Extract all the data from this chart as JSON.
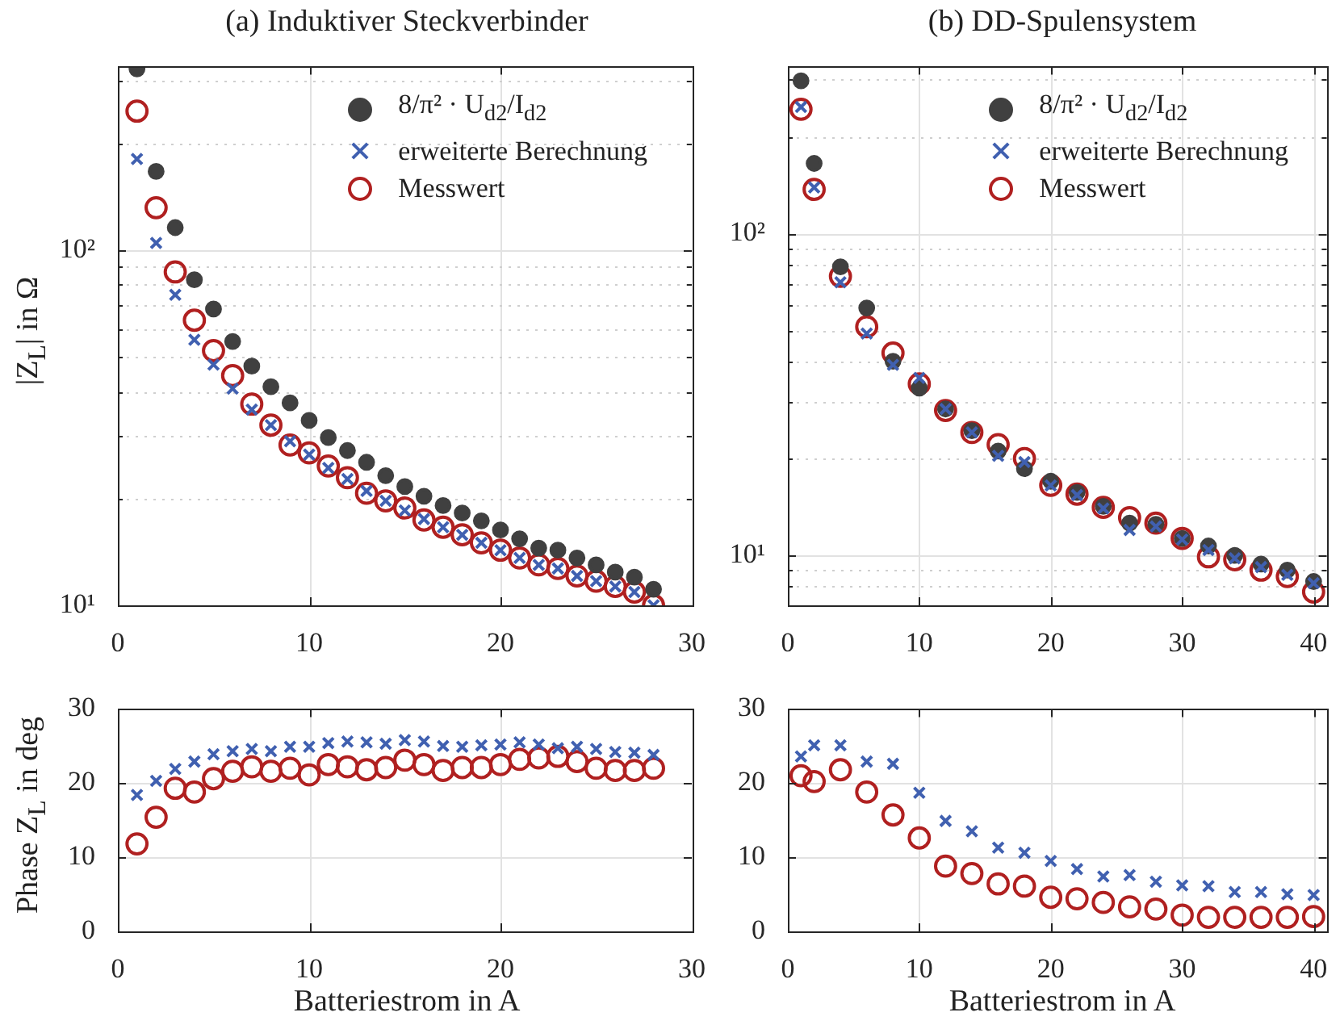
{
  "chart_data": [
    {
      "type": "scatter",
      "title": "(a) Induktiver Steckverbinder",
      "ylabel": "|Z$_{L}$| in Ω",
      "log": "y",
      "grid": true,
      "legend": "top right",
      "xlim": [
        0,
        30
      ],
      "xticks": [
        0,
        10,
        20,
        30
      ],
      "ylim": [
        10,
        330
      ],
      "yticks": [
        {
          "value": 10,
          "label": "10¹"
        },
        {
          "value": 20,
          "label": null
        },
        {
          "value": 30,
          "label": null
        },
        {
          "value": 40,
          "label": null
        },
        {
          "value": 50,
          "label": null
        },
        {
          "value": 60,
          "label": null
        },
        {
          "value": 70,
          "label": null
        },
        {
          "value": 80,
          "label": null
        },
        {
          "value": 90,
          "label": null
        },
        {
          "value": 100,
          "label": "10²"
        },
        {
          "value": 200,
          "label": null
        },
        {
          "value": 300,
          "label": null
        }
      ],
      "x": [
        1,
        2,
        3,
        4,
        5,
        6,
        7,
        8,
        9,
        10,
        11,
        12,
        13,
        14,
        15,
        16,
        17,
        18,
        19,
        20,
        21,
        22,
        23,
        24,
        25,
        26,
        27,
        28
      ],
      "series": [
        {
          "name": "8/π² · U$_{d2}$/I$_{d2}$",
          "color": "#404040",
          "marker": "circle",
          "values": [
            325,
            167,
            116,
            82.7,
            68.4,
            55.4,
            47.2,
            41.3,
            37.2,
            33.2,
            29.7,
            27.3,
            25.3,
            23.2,
            21.6,
            20.3,
            19.1,
            18.2,
            17.3,
            16.3,
            15.4,
            14.5,
            14.3,
            13.6,
            13.0,
            12.4,
            12.0,
            11.1
          ]
        },
        {
          "name": "erweiterte Berechnung",
          "color": "#4060b0",
          "marker": "cross",
          "values": [
            181,
            105,
            75,
            56,
            47.7,
            40.8,
            35.6,
            32.2,
            29.0,
            26.6,
            24.4,
            22.7,
            21.0,
            19.7,
            18.5,
            17.5,
            16.6,
            15.8,
            15.0,
            14.3,
            13.6,
            13.0,
            12.7,
            12.1,
            11.7,
            11.3,
            10.9,
            10.0
          ]
        },
        {
          "name": "Messwert",
          "color": "#b02020",
          "marker": "circle",
          "values": [
            247,
            132,
            87,
            63.6,
            52.2,
            44.4,
            36.9,
            32.2,
            28.3,
            26.9,
            24.7,
            22.9,
            20.7,
            19.7,
            18.8,
            17.4,
            16.6,
            15.8,
            15.0,
            14.3,
            13.6,
            13.0,
            12.7,
            12.1,
            11.7,
            11.3,
            10.9,
            10.0
          ]
        }
      ]
    },
    {
      "type": "scatter",
      "title": "(b) DD-Spulensystem",
      "log": "y",
      "grid": true,
      "legend": "top right",
      "xlim": [
        0,
        41
      ],
      "xticks": [
        0,
        10,
        20,
        30,
        40
      ],
      "ylim": [
        7,
        330
      ],
      "yticks": [
        {
          "value": 8,
          "label": null
        },
        {
          "value": 9,
          "label": null
        },
        {
          "value": 10,
          "label": "10¹"
        },
        {
          "value": 20,
          "label": null
        },
        {
          "value": 30,
          "label": null
        },
        {
          "value": 40,
          "label": null
        },
        {
          "value": 50,
          "label": null
        },
        {
          "value": 60,
          "label": null
        },
        {
          "value": 70,
          "label": null
        },
        {
          "value": 80,
          "label": null
        },
        {
          "value": 90,
          "label": null
        },
        {
          "value": 100,
          "label": "10²"
        },
        {
          "value": 200,
          "label": null
        },
        {
          "value": 300,
          "label": null
        }
      ],
      "x": [
        1,
        2,
        4,
        6,
        8,
        10,
        12,
        14,
        16,
        18,
        20,
        22,
        24,
        26,
        28,
        30,
        32,
        34,
        36,
        38,
        40
      ],
      "series": [
        {
          "name": "8/π² · U$_{d2}$/I$_{d2}$",
          "color": "#404040",
          "marker": "circle",
          "values": [
            298,
            165,
            78.8,
            58.7,
            40.1,
            33.1,
            28.5,
            24.4,
            21.1,
            18.6,
            17.0,
            15.7,
            14.2,
            12.6,
            12.5,
            11.3,
            10.7,
            10.0,
            9.4,
            9.0,
            8.3
          ]
        },
        {
          "name": "erweiterte Berechnung",
          "color": "#4060b0",
          "marker": "cross",
          "values": [
            247,
            139,
            70.5,
            48.9,
            39.1,
            35.6,
            28.5,
            24.1,
            20.4,
            19.5,
            16.5,
            15.4,
            14.0,
            12.0,
            12.3,
            11.2,
            10.4,
            9.8,
            9.2,
            8.7,
            8.2
          ]
        },
        {
          "name": "Messwert",
          "color": "#b02020",
          "marker": "circle",
          "values": [
            243,
            137,
            73.6,
            51.3,
            42.5,
            34.1,
            28.2,
            24.1,
            22.1,
            20.0,
            16.5,
            15.5,
            14.1,
            13.1,
            12.6,
            11.3,
            9.9,
            9.7,
            9.0,
            8.6,
            7.7
          ]
        }
      ]
    },
    {
      "type": "scatter",
      "xlabel": "Batteriestrom in A",
      "ylabel": "Phase Z$_{L}$ in deg",
      "grid": true,
      "xlim": [
        0,
        30
      ],
      "xticks": [
        0,
        10,
        20,
        30
      ],
      "ylim": [
        0,
        30
      ],
      "yticks": [
        0,
        10,
        20,
        30
      ],
      "x": [
        1,
        2,
        3,
        4,
        5,
        6,
        7,
        8,
        9,
        10,
        11,
        12,
        13,
        14,
        15,
        16,
        17,
        18,
        19,
        20,
        21,
        22,
        23,
        24,
        25,
        26,
        27,
        28
      ],
      "series": [
        {
          "color": "#4060b0",
          "marker": "cross",
          "values": [
            18.4,
            20.3,
            21.9,
            22.9,
            23.9,
            24.3,
            24.6,
            24.3,
            24.9,
            24.9,
            25.4,
            25.6,
            25.5,
            25.3,
            25.8,
            25.6,
            25.0,
            24.9,
            25.1,
            25.2,
            25.5,
            25.2,
            24.7,
            24.9,
            24.6,
            24.2,
            24.1,
            23.8
          ]
        },
        {
          "color": "#b02020",
          "marker": "circle",
          "values": [
            11.8,
            15.4,
            19.3,
            18.8,
            20.6,
            21.6,
            22.2,
            21.6,
            22.0,
            21.1,
            22.5,
            22.2,
            21.8,
            22.1,
            23.1,
            22.5,
            21.7,
            22.1,
            22.1,
            22.5,
            23.2,
            23.4,
            23.6,
            22.9,
            22.0,
            21.7,
            21.7,
            22.0
          ]
        }
      ]
    },
    {
      "type": "scatter",
      "xlabel": "Batteriestrom in A",
      "grid": true,
      "xlim": [
        0,
        41
      ],
      "xticks": [
        0,
        10,
        20,
        30,
        40
      ],
      "ylim": [
        0,
        30
      ],
      "yticks": [
        0,
        10,
        20,
        30
      ],
      "x": [
        1,
        2,
        4,
        6,
        8,
        10,
        12,
        14,
        16,
        18,
        20,
        22,
        24,
        26,
        28,
        30,
        32,
        34,
        36,
        38,
        40
      ],
      "series": [
        {
          "color": "#4060b0",
          "marker": "cross",
          "values": [
            23.6,
            25.1,
            25.1,
            22.9,
            22.6,
            18.7,
            14.9,
            13.5,
            11.3,
            10.6,
            9.5,
            8.4,
            7.4,
            7.6,
            6.7,
            6.2,
            6.1,
            5.3,
            5.3,
            5.0,
            4.9
          ]
        },
        {
          "color": "#b02020",
          "marker": "circle",
          "values": [
            21.0,
            20.2,
            21.8,
            18.8,
            15.7,
            12.6,
            8.8,
            7.8,
            6.4,
            6.1,
            4.6,
            4.4,
            3.9,
            3.3,
            3.0,
            2.2,
            1.9,
            1.9,
            1.9,
            1.9,
            2.0
          ]
        }
      ]
    }
  ]
}
